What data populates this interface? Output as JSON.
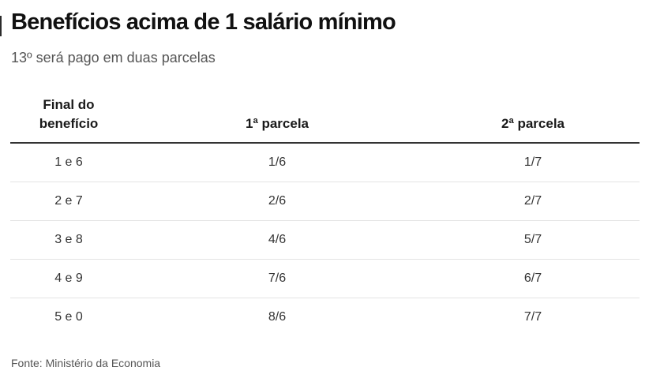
{
  "header": {
    "title": "Benefícios acima de 1 salário mínimo",
    "subtitle": "13º será pago em duas parcelas"
  },
  "table": {
    "columns": {
      "final_line1": "Final do",
      "final_line2": "benefício",
      "first": "1ª parcela",
      "second": "2ª parcela"
    },
    "rows": [
      {
        "final": "1 e 6",
        "first": "1/6",
        "second": "1/7"
      },
      {
        "final": "2 e 7",
        "first": "2/6",
        "second": "2/7"
      },
      {
        "final": "3 e 8",
        "first": "4/6",
        "second": "5/7"
      },
      {
        "final": "4 e 9",
        "first": "7/6",
        "second": "6/7"
      },
      {
        "final": "5 e 0",
        "first": "8/6",
        "second": "7/7"
      }
    ]
  },
  "footer": {
    "source": "Fonte: Ministério da Economia"
  }
}
